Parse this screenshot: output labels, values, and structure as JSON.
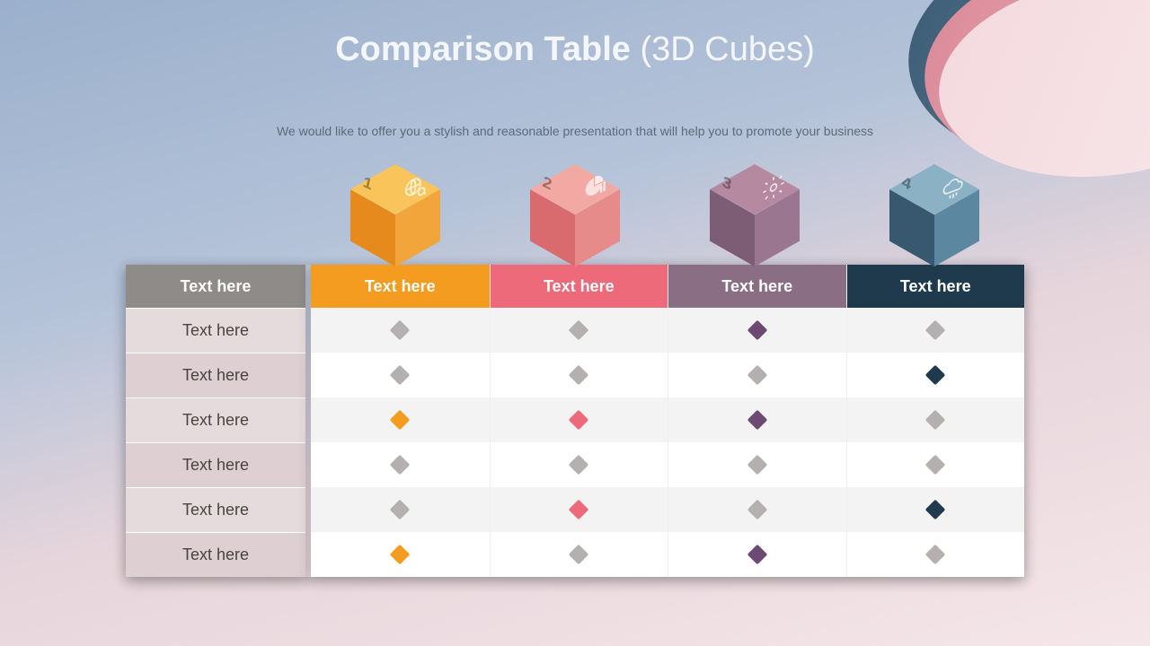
{
  "title_main": "Comparison Table ",
  "title_paren": "(3D Cubes)",
  "subtitle": "We would like to offer you a stylish and reasonable presentation that will help you to promote your business",
  "neutral_diamond": "#b5b0b0",
  "cubes": [
    {
      "num": "1",
      "top": "#f9c55a",
      "left": "#e78a1e",
      "right": "#f2a53a",
      "accent": "#f39c1f",
      "icon": "globe"
    },
    {
      "num": "2",
      "top": "#f2a9a4",
      "left": "#d96a6e",
      "right": "#e68a8a",
      "accent": "#ec6a7a",
      "icon": "chart"
    },
    {
      "num": "3",
      "top": "#b58aa0",
      "left": "#7d5c75",
      "right": "#9a7690",
      "accent": "#6d4a74",
      "icon": "gear"
    },
    {
      "num": "4",
      "top": "#8ab1c4",
      "left": "#37586e",
      "right": "#5c87a0",
      "accent": "#1f3a4c",
      "icon": "cloud"
    }
  ],
  "labels_header": "Text here",
  "col_headers": [
    "Text here",
    "Text here",
    "Text here",
    "Text here"
  ],
  "header_bg": [
    "#f39c1f",
    "#ec6a7a",
    "#8a6f84",
    "#1f3a4c"
  ],
  "row_labels": [
    "Text here",
    "Text here",
    "Text here",
    "Text here",
    "Text here",
    "Text here"
  ],
  "cells": [
    [
      "n",
      "n",
      "c",
      "n"
    ],
    [
      "n",
      "n",
      "n",
      "c"
    ],
    [
      "c",
      "c",
      "c",
      "n"
    ],
    [
      "n",
      "n",
      "n",
      "n"
    ],
    [
      "n",
      "c",
      "n",
      "c"
    ],
    [
      "c",
      "n",
      "c",
      "n"
    ]
  ]
}
